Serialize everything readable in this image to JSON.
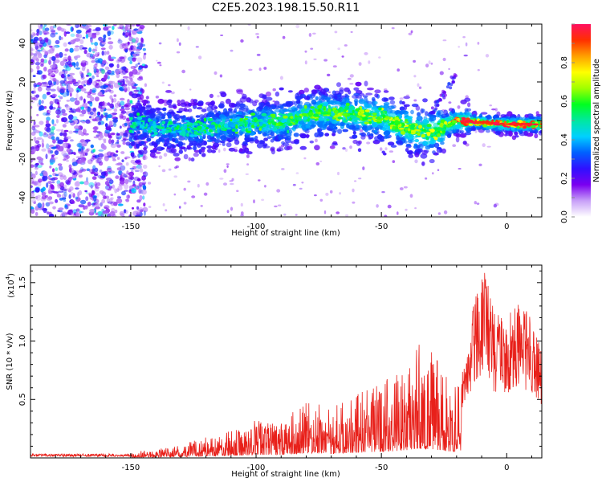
{
  "title": "C2E5.2023.198.15.50.R11",
  "chart_data": [
    {
      "type": "heatmap",
      "xlabel": "Height of straight line (km)",
      "ylabel": "Frequency (Hz)",
      "xlim": [
        -190,
        14
      ],
      "ylim": [
        -50,
        50
      ],
      "xticks": [
        -150,
        -100,
        -50,
        0
      ],
      "yticks": [
        -40,
        -20,
        0,
        20,
        40
      ],
      "grid": false,
      "colorbar": {
        "label": "Normalized spectral amplitude",
        "range": [
          0,
          1
        ],
        "ticks": [
          0.0,
          0.2,
          0.4,
          0.6,
          0.8
        ],
        "colormap": [
          "#ffffff",
          "#c8a0f8",
          "#7a00f0",
          "#3010ff",
          "#0060ff",
          "#00d0ff",
          "#00e8a0",
          "#00ff20",
          "#a0ff00",
          "#ffff00",
          "#ffa000",
          "#ff3000",
          "#ff1060"
        ]
      },
      "ridge": [
        {
          "x": -180,
          "freq": -12
        },
        {
          "x": -150,
          "freq": -2
        },
        {
          "x": -125,
          "freq": -5
        },
        {
          "x": -110,
          "freq": -2
        },
        {
          "x": -90,
          "freq": -1
        },
        {
          "x": -75,
          "freq": 4
        },
        {
          "x": -60,
          "freq": 3
        },
        {
          "x": -50,
          "freq": 2
        },
        {
          "x": -40,
          "freq": -4
        },
        {
          "x": -30,
          "freq": -6
        },
        {
          "x": -20,
          "freq": 0
        },
        {
          "x": -10,
          "freq": -1
        },
        {
          "x": 0,
          "freq": -2
        },
        {
          "x": 14,
          "freq": -2
        }
      ]
    },
    {
      "type": "line",
      "xlabel": "Height of straight line (km)",
      "ylabel": "SNR (10 * v/v)",
      "yscale_label": "(x10",
      "yscale_exponent": "4",
      "xlim": [
        -190,
        14
      ],
      "ylim": [
        0,
        16500
      ],
      "xticks": [
        -150,
        -100,
        -50,
        0
      ],
      "yticks": [
        5000,
        10000,
        15000
      ],
      "ytick_labels": [
        "0.5",
        "1.0",
        "1.5"
      ],
      "grid": false,
      "color": "#e8201a",
      "series": [
        {
          "envelope": [
            {
              "x": -190,
              "y": 200
            },
            {
              "x": -182,
              "y": 600
            },
            {
              "x": -170,
              "y": 300
            },
            {
              "x": -150,
              "y": 500
            },
            {
              "x": -140,
              "y": 800
            },
            {
              "x": -130,
              "y": 1100
            },
            {
              "x": -125,
              "y": 1500
            },
            {
              "x": -115,
              "y": 2200
            },
            {
              "x": -105,
              "y": 2500
            },
            {
              "x": -100,
              "y": 3500
            },
            {
              "x": -90,
              "y": 3200
            },
            {
              "x": -80,
              "y": 4800
            },
            {
              "x": -70,
              "y": 4500
            },
            {
              "x": -60,
              "y": 5500
            },
            {
              "x": -50,
              "y": 6500
            },
            {
              "x": -42,
              "y": 7500
            },
            {
              "x": -35,
              "y": 9800
            },
            {
              "x": -30,
              "y": 9500
            },
            {
              "x": -25,
              "y": 7500
            },
            {
              "x": -20,
              "y": 6000
            },
            {
              "x": -16,
              "y": 9000
            },
            {
              "x": -13,
              "y": 13500
            },
            {
              "x": -9,
              "y": 16500
            },
            {
              "x": -5,
              "y": 12500
            },
            {
              "x": 0,
              "y": 12000
            },
            {
              "x": 5,
              "y": 13500
            },
            {
              "x": 10,
              "y": 12000
            },
            {
              "x": 14,
              "y": 9000
            }
          ]
        }
      ]
    }
  ]
}
